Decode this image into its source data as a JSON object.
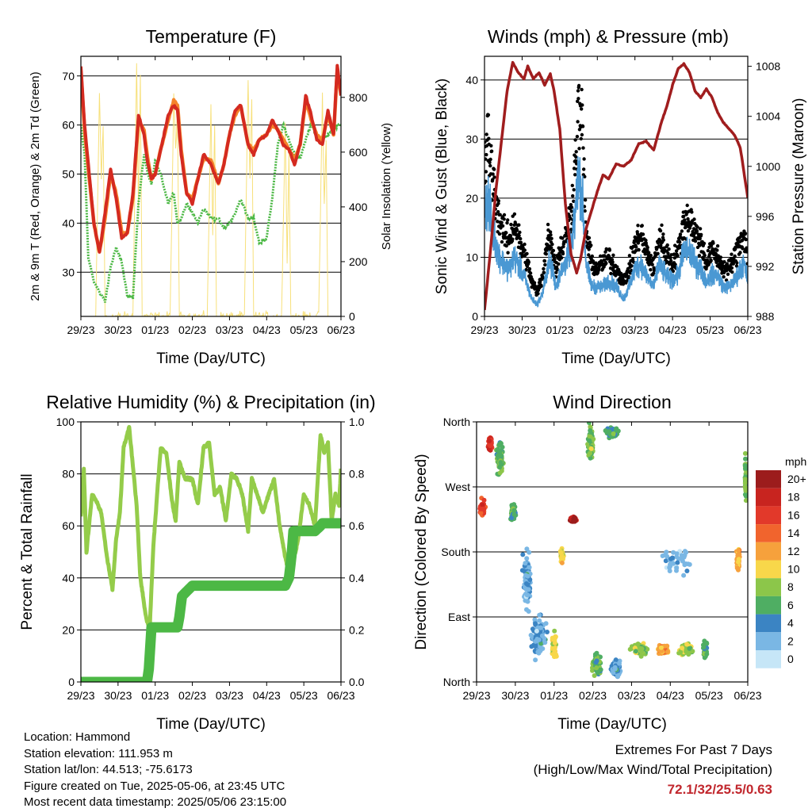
{
  "colors": {
    "temp_red": "#d42a20",
    "temp_orange": "#f5832a",
    "dewpoint_green": "#4cb845",
    "insolation_yellow": "#f7e07a",
    "gust_black": "#000000",
    "wind_blue": "#4a98d3",
    "pressure_maroon": "#a01d1e",
    "rh_lightgreen": "#94cc4a",
    "precip_green": "#4cb845",
    "extremes_value": "#c1272d"
  },
  "metadata": {
    "location": "Location: Hammond",
    "elevation": "Station elevation: 111.953 m",
    "latlon": "Station lat/lon: 44.513; -75.6173",
    "created": "Figure created on Tue, 2025-05-06, at 23:45 UTC",
    "latest": "Most recent data timestamp: 2025/05/06 23:15:00"
  },
  "extremes": {
    "title": "Extremes For Past 7 Days",
    "subtitle": "(High/Low/Max Wind/Total Precipitation)",
    "value": "72.1/32/25.5/0.63"
  },
  "chart_data": [
    {
      "type": "line",
      "title": "Temperature (F)",
      "xlabel": "Time (Day/UTC)",
      "ylabel": "2m & 9m T (Red, Orange) & 2m Td (Green)",
      "y2label": "Solar Insolation (Yellow)",
      "x_ticks": [
        "29/23",
        "30/23",
        "01/23",
        "02/23",
        "03/23",
        "04/23",
        "05/23",
        "06/23"
      ],
      "y_ticks": [
        30,
        40,
        50,
        60,
        70
      ],
      "y2_ticks": [
        0,
        200,
        400,
        600,
        800
      ],
      "ylim": [
        21,
        74
      ],
      "y2lim": [
        0,
        950
      ],
      "xlim": [
        0,
        7
      ],
      "grid": "horizontal",
      "x": [
        0,
        0.1,
        0.2,
        0.35,
        0.5,
        0.65,
        0.8,
        0.95,
        1.1,
        1.25,
        1.4,
        1.55,
        1.7,
        1.8,
        1.9,
        2.0,
        2.15,
        2.35,
        2.5,
        2.6,
        2.7,
        2.85,
        3.0,
        3.15,
        3.3,
        3.5,
        3.7,
        3.85,
        4.0,
        4.15,
        4.3,
        4.5,
        4.65,
        4.8,
        5.0,
        5.15,
        5.3,
        5.45,
        5.6,
        5.75,
        5.9,
        6.05,
        6.2,
        6.35,
        6.5,
        6.65,
        6.8,
        6.9,
        7.0
      ],
      "series": [
        {
          "name": "2m T",
          "color": "#d42a20",
          "values": [
            72,
            60,
            52,
            40,
            34,
            42,
            51,
            45,
            37,
            38,
            46,
            62,
            58,
            52,
            49,
            50,
            55,
            62,
            64,
            63,
            54,
            46,
            44,
            49,
            54,
            52,
            48,
            52,
            58,
            63,
            64,
            56,
            54,
            57,
            58,
            61,
            59,
            56,
            55,
            52,
            56,
            66,
            62,
            57,
            56,
            63,
            58,
            72,
            66
          ]
        },
        {
          "name": "9m T",
          "color": "#f5832a",
          "values": [
            71,
            59,
            51,
            40,
            34,
            41,
            50,
            46,
            38,
            38,
            45,
            61,
            59,
            53,
            49,
            50,
            55,
            61,
            65,
            64,
            55,
            46,
            45,
            49,
            53,
            53,
            48,
            52,
            58,
            62,
            64,
            56,
            55,
            57,
            58,
            60,
            59,
            57,
            55,
            53,
            56,
            65,
            61,
            58,
            57,
            62,
            58,
            71,
            66
          ]
        },
        {
          "name": "2m Td",
          "color": "#4cb845",
          "values": [
            60,
            54,
            33,
            28,
            26,
            24,
            31,
            35,
            32,
            25,
            25,
            44,
            54,
            50,
            48,
            53,
            50,
            44,
            46,
            40,
            41,
            44,
            42,
            40,
            43,
            41,
            41,
            39,
            40,
            42,
            45,
            41,
            41,
            36,
            37,
            45,
            56,
            60,
            57,
            54,
            53,
            57,
            60,
            58,
            57,
            58,
            59,
            60,
            60
          ]
        },
        {
          "name": "Solar Insolation",
          "color": "#f7e07a",
          "axis": "y2",
          "x": [
            0.4,
            0.5,
            0.55,
            0.6,
            0.65,
            1.4,
            1.5,
            1.55,
            1.6,
            1.65,
            2.4,
            2.5,
            2.55,
            2.6,
            2.65,
            3.4,
            3.5,
            3.55,
            3.6,
            3.65,
            4.4,
            4.5,
            4.55,
            4.6,
            4.65,
            5.4,
            5.5,
            5.55,
            5.6,
            5.65,
            6.4,
            6.5,
            6.55,
            6.6,
            6.65
          ],
          "values": [
            0,
            820,
            500,
            700,
            0,
            0,
            920,
            400,
            880,
            0,
            0,
            800,
            600,
            750,
            0,
            0,
            760,
            300,
            700,
            0,
            0,
            860,
            500,
            800,
            0,
            0,
            700,
            200,
            600,
            0,
            0,
            800,
            400,
            650,
            0
          ]
        }
      ]
    },
    {
      "type": "scatter",
      "title": "Winds (mph) & Pressure (mb)",
      "xlabel": "Time (Day/UTC)",
      "ylabel": "Sonic Wind & Gust (Blue, Black)",
      "y2label": "Station Pressure (Maroon)",
      "x_ticks": [
        "29/23",
        "30/23",
        "01/23",
        "02/23",
        "03/23",
        "04/23",
        "05/23",
        "06/23"
      ],
      "y_ticks": [
        0,
        10,
        20,
        30,
        40
      ],
      "y2_ticks": [
        988,
        992,
        996,
        1000,
        1004,
        1008
      ],
      "ylim": [
        0,
        44
      ],
      "y2lim": [
        988,
        1008.8
      ],
      "xlim": [
        0,
        7
      ],
      "grid": "horizontal",
      "x": [
        0,
        0.1,
        0.2,
        0.35,
        0.5,
        0.65,
        0.8,
        0.95,
        1.1,
        1.25,
        1.4,
        1.55,
        1.7,
        1.8,
        1.9,
        2.0,
        2.15,
        2.35,
        2.5,
        2.6,
        2.7,
        2.85,
        3.0,
        3.15,
        3.3,
        3.5,
        3.7,
        3.85,
        4.0,
        4.15,
        4.3,
        4.5,
        4.65,
        4.8,
        5.0,
        5.15,
        5.3,
        5.45,
        5.6,
        5.75,
        5.9,
        6.05,
        6.2,
        6.35,
        6.5,
        6.65,
        6.8,
        6.9,
        7.0
      ],
      "series": [
        {
          "name": "Gust",
          "color": "#000000",
          "values": [
            25,
            30,
            24,
            18,
            14,
            13,
            16,
            12,
            10,
            6,
            4,
            7,
            14,
            12,
            8,
            11,
            13,
            20,
            35,
            32,
            14,
            9,
            8,
            9,
            10,
            8,
            6,
            8,
            12,
            14,
            11,
            8,
            14,
            11,
            9,
            11,
            16,
            17,
            14,
            13,
            9,
            11,
            10,
            8,
            8,
            10,
            13,
            14,
            10
          ]
        },
        {
          "name": "Sonic Wind",
          "color": "#4a98d3",
          "values": [
            18,
            20,
            15,
            11,
            9,
            8,
            10,
            8,
            6,
            3,
            2,
            4,
            9,
            8,
            5,
            7,
            9,
            13,
            24,
            20,
            9,
            5,
            5,
            5,
            6,
            5,
            3,
            5,
            8,
            9,
            7,
            5,
            9,
            7,
            6,
            7,
            11,
            11,
            9,
            8,
            6,
            7,
            7,
            5,
            5,
            6,
            8,
            9,
            6
          ]
        },
        {
          "name": "Station Pressure",
          "color": "#a01d1e",
          "axis": "y2",
          "x": [
            0,
            0.15,
            0.3,
            0.45,
            0.6,
            0.75,
            0.9,
            1.05,
            1.15,
            1.3,
            1.45,
            1.6,
            1.75,
            1.85,
            2.0,
            2.15,
            2.3,
            2.45,
            2.55,
            2.7,
            2.85,
            3.0,
            3.15,
            3.3,
            3.5,
            3.7,
            3.9,
            4.1,
            4.3,
            4.5,
            4.7,
            4.85,
            5.0,
            5.15,
            5.3,
            5.45,
            5.6,
            5.75,
            5.9,
            6.05,
            6.2,
            6.35,
            6.5,
            6.65,
            6.8,
            6.95,
            7.0
          ],
          "values": [
            988.5,
            993,
            998,
            1002,
            1006,
            1008.3,
            1007.5,
            1007,
            1008,
            1007,
            1007.5,
            1006.5,
            1007.4,
            1006,
            1003,
            997,
            993,
            991.5,
            992.5,
            995,
            996.5,
            998,
            999.3,
            999,
            1000.2,
            1000,
            1000.5,
            1001.8,
            1002,
            1001.3,
            1003.5,
            1004.8,
            1006.5,
            1007.8,
            1008.2,
            1007.5,
            1006,
            1005.5,
            1006.2,
            1005.5,
            1004.3,
            1003.5,
            1003,
            1002.5,
            1001.5,
            998.5,
            997.5
          ]
        }
      ]
    },
    {
      "type": "line",
      "title": "Relative Humidity (%) & Precipitation (in)",
      "xlabel": "Time (Day/UTC)",
      "ylabel": "Percent & Total Rainfall",
      "x_ticks": [
        "29/23",
        "30/23",
        "01/23",
        "02/23",
        "03/23",
        "04/23",
        "05/23",
        "06/23"
      ],
      "y_ticks": [
        0,
        20,
        40,
        60,
        80,
        100
      ],
      "y2_ticks": [
        "0.0",
        "0.2",
        "0.4",
        "0.6",
        "0.8",
        "1.0"
      ],
      "ylim": [
        0,
        100
      ],
      "y2lim": [
        0,
        1
      ],
      "xlim": [
        0,
        7
      ],
      "grid": "horizontal",
      "series": [
        {
          "name": "RH",
          "color": "#94cc4a",
          "x": [
            0,
            0.08,
            0.15,
            0.22,
            0.3,
            0.4,
            0.55,
            0.7,
            0.85,
            0.95,
            1.05,
            1.15,
            1.3,
            1.5,
            1.6,
            1.75,
            1.85,
            1.95,
            2.05,
            2.15,
            2.3,
            2.45,
            2.55,
            2.65,
            2.8,
            3.0,
            3.15,
            3.3,
            3.45,
            3.6,
            3.75,
            3.9,
            4.05,
            4.2,
            4.35,
            4.5,
            4.6,
            4.75,
            4.9,
            5.05,
            5.2,
            5.35,
            5.5,
            5.6,
            5.7,
            5.85,
            6.0,
            6.15,
            6.3,
            6.45,
            6.55,
            6.65,
            6.75,
            6.85,
            6.95,
            7.0
          ],
          "values": [
            63,
            82,
            50,
            60,
            72,
            70,
            65,
            48,
            36,
            55,
            65,
            90,
            98,
            68,
            40,
            25,
            20,
            52,
            72,
            90,
            88,
            70,
            62,
            85,
            78,
            78,
            68,
            90,
            92,
            72,
            75,
            62,
            80,
            78,
            72,
            58,
            78,
            72,
            65,
            72,
            78,
            60,
            48,
            42,
            45,
            55,
            72,
            68,
            60,
            95,
            88,
            92,
            62,
            72,
            68,
            82
          ]
        },
        {
          "name": "Total Precipitation",
          "color": "#4cb845",
          "axis": "y2",
          "x": [
            0,
            1.78,
            1.83,
            1.9,
            2.6,
            2.65,
            2.72,
            3.0,
            4.6,
            5.5,
            5.6,
            5.68,
            5.72,
            6.0,
            6.3,
            6.45,
            6.5,
            7.0
          ],
          "values": [
            0,
            0,
            0.05,
            0.21,
            0.21,
            0.25,
            0.33,
            0.37,
            0.37,
            0.37,
            0.4,
            0.5,
            0.58,
            0.58,
            0.58,
            0.6,
            0.61,
            0.61
          ]
        }
      ]
    },
    {
      "type": "scatter",
      "title": "Wind Direction",
      "xlabel": "Time (Day/UTC)",
      "ylabel": "Direction (Colored By Speed)",
      "x_ticks": [
        "29/23",
        "30/23",
        "01/23",
        "02/23",
        "03/23",
        "04/23",
        "05/23",
        "06/23"
      ],
      "y_ticks": [
        "North",
        "East",
        "South",
        "West",
        "North"
      ],
      "ylim": [
        0,
        360
      ],
      "xlim": [
        0,
        7
      ],
      "grid": "horizontal",
      "colorbar": {
        "title": "mph",
        "labels": [
          "20+",
          "18",
          "16",
          "14",
          "12",
          "10",
          "8",
          "6",
          "4",
          "2",
          "0"
        ],
        "colors": [
          "#9c1c1c",
          "#c8241f",
          "#e2392a",
          "#f1642d",
          "#f6a13c",
          "#f8d74a",
          "#8cc64a",
          "#4fae63",
          "#3b84c3",
          "#7ab7e4",
          "#c6e6f7"
        ]
      },
      "clusters": [
        {
          "x": 0.15,
          "dir": 240,
          "speed": 16,
          "n": 14,
          "sx": 0.08,
          "sy": 15
        },
        {
          "x": 0.35,
          "dir": 330,
          "speed": 17,
          "n": 12,
          "sx": 0.06,
          "sy": 15
        },
        {
          "x": 0.6,
          "dir": 310,
          "speed": 7,
          "n": 20,
          "sx": 0.12,
          "sy": 30
        },
        {
          "x": 0.95,
          "dir": 235,
          "speed": 6,
          "n": 14,
          "sx": 0.08,
          "sy": 15
        },
        {
          "x": 1.3,
          "dir": 140,
          "speed": 3,
          "n": 18,
          "sx": 0.15,
          "sy": 60
        },
        {
          "x": 1.6,
          "dir": 60,
          "speed": 3,
          "n": 25,
          "sx": 0.25,
          "sy": 40
        },
        {
          "x": 2.0,
          "dir": 50,
          "speed": 10,
          "n": 14,
          "sx": 0.08,
          "sy": 25
        },
        {
          "x": 2.2,
          "dir": 175,
          "speed": 10,
          "n": 8,
          "sx": 0.06,
          "sy": 12
        },
        {
          "x": 2.5,
          "dir": 225,
          "speed": 19,
          "n": 18,
          "sx": 0.1,
          "sy": 5
        },
        {
          "x": 2.95,
          "dir": 330,
          "speed": 7,
          "n": 18,
          "sx": 0.1,
          "sy": 35
        },
        {
          "x": 3.5,
          "dir": 345,
          "speed": 6,
          "n": 22,
          "sx": 0.2,
          "sy": 10
        },
        {
          "x": 3.1,
          "dir": 25,
          "speed": 6,
          "n": 18,
          "sx": 0.15,
          "sy": 20
        },
        {
          "x": 3.6,
          "dir": 20,
          "speed": 3,
          "n": 16,
          "sx": 0.15,
          "sy": 15
        },
        {
          "x": 4.2,
          "dir": 45,
          "speed": 8,
          "n": 22,
          "sx": 0.25,
          "sy": 10
        },
        {
          "x": 4.8,
          "dir": 45,
          "speed": 12,
          "n": 18,
          "sx": 0.2,
          "sy": 8
        },
        {
          "x": 5.4,
          "dir": 45,
          "speed": 8,
          "n": 16,
          "sx": 0.25,
          "sy": 10
        },
        {
          "x": 5.9,
          "dir": 45,
          "speed": 6,
          "n": 12,
          "sx": 0.1,
          "sy": 15
        },
        {
          "x": 6.75,
          "dir": 170,
          "speed": 12,
          "n": 14,
          "sx": 0.06,
          "sy": 20
        },
        {
          "x": 6.95,
          "dir": 280,
          "speed": 7,
          "n": 12,
          "sx": 0.03,
          "sy": 50
        },
        {
          "x": 5.15,
          "dir": 170,
          "speed": 2,
          "n": 10,
          "sx": 0.6,
          "sy": 30
        }
      ]
    }
  ]
}
